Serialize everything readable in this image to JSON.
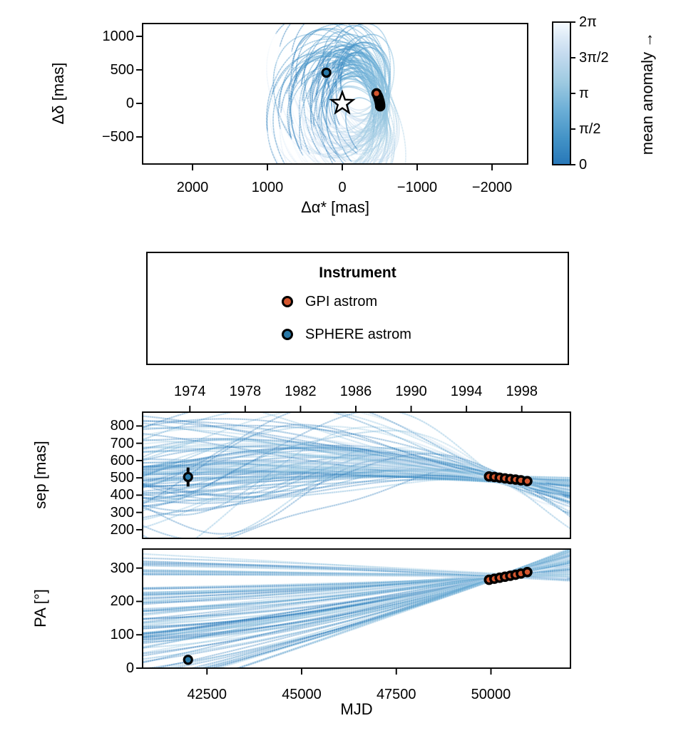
{
  "figure": {
    "background": "#ffffff"
  },
  "colors": {
    "gpi_marker": "#d4562e",
    "sphere_marker": "#2979a8",
    "marker_edge": "#000000",
    "axis": "#000000",
    "trace_blues": [
      "#2777b8",
      "#4292c6",
      "#6baed6",
      "#9ecae1",
      "#c6dbef",
      "#deebf7",
      "#f7fbff"
    ]
  },
  "legend": {
    "title": "Instrument",
    "items": [
      {
        "label": "GPI astrom",
        "color": "#d4562e"
      },
      {
        "label": "SPHERE astrom",
        "color": "#2979a8"
      }
    ]
  },
  "colorbar": {
    "label": "mean anomaly →",
    "ticks": [
      "0",
      "π/2",
      "π",
      "3π/2",
      "2π"
    ],
    "bottom_color": "#2777b8",
    "top_color": "#f7fbff"
  },
  "chart_data": [
    {
      "id": "sky_plane",
      "type": "line",
      "xlabel": "Δα* [mas]",
      "ylabel": "Δδ [mas]",
      "xlim": [
        2667,
        -2476
      ],
      "ylim": [
        -904,
        1191
      ],
      "xticks": {
        "values": [
          2000,
          1000,
          0,
          -1000,
          -2000
        ],
        "labels": [
          "2000",
          "1000",
          "0",
          "−1000",
          "−2000"
        ]
      },
      "yticks": {
        "values": [
          1000,
          500,
          0,
          -500
        ],
        "labels": [
          "1000",
          "500",
          "0",
          "−500"
        ]
      },
      "star": {
        "x": 0,
        "y": 0,
        "marker": "open-star"
      },
      "series": [
        {
          "name": "GPI astrom",
          "points": [
            [
              -506,
              -44
            ],
            [
              -505,
              -18
            ],
            [
              -501,
              9
            ],
            [
              -496,
              35
            ],
            [
              -489,
              60
            ],
            [
              -483,
              85
            ],
            [
              -473,
              113
            ],
            [
              -457,
              149
            ]
          ]
        },
        {
          "name": "SPHERE astrom",
          "points": [
            [
              213,
              458
            ]
          ]
        }
      ],
      "orbit_cloud": {
        "n_orbits": 85,
        "colored_by": "mean anomaly",
        "colormap": "Blues (dark=0, light=2π)"
      }
    },
    {
      "id": "separation_vs_time",
      "type": "line",
      "ylabel": "sep [mas]",
      "xlim": [
        40800,
        52100
      ],
      "ylim": [
        150,
        880
      ],
      "yticks": {
        "values": [
          800,
          700,
          600,
          500,
          400,
          300,
          200
        ],
        "labels": [
          "800",
          "700",
          "600",
          "500",
          "400",
          "300",
          "200"
        ]
      },
      "top_year_ticks": {
        "values": [
          42048,
          43509,
          44970,
          46431,
          47892,
          49353,
          50814
        ],
        "labels": [
          "1974",
          "1978",
          "1982",
          "1986",
          "1990",
          "1994",
          "1998"
        ]
      },
      "series": [
        {
          "name": "SPHERE astrom",
          "points": [
            [
              42000,
              505
            ]
          ],
          "yerr": [
            55
          ]
        },
        {
          "name": "GPI astrom",
          "points": [
            [
              49950,
              508
            ],
            [
              50090,
              505
            ],
            [
              50230,
              501
            ],
            [
              50370,
              497
            ],
            [
              50510,
              493
            ],
            [
              50650,
              490
            ],
            [
              50790,
              486
            ],
            [
              50960,
              481
            ]
          ]
        }
      ]
    },
    {
      "id": "pa_vs_time",
      "type": "line",
      "xlabel": "MJD",
      "ylabel": "PA [°]",
      "xlim": [
        40800,
        52100
      ],
      "ylim": [
        0,
        357
      ],
      "xticks": {
        "values": [
          42500,
          45000,
          47500,
          50000
        ],
        "labels": [
          "42500",
          "45000",
          "47500",
          "50000"
        ]
      },
      "yticks": {
        "values": [
          300,
          200,
          100,
          0
        ],
        "labels": [
          "300",
          "200",
          "100",
          "0"
        ]
      },
      "series": [
        {
          "name": "SPHERE astrom",
          "points": [
            [
              42000,
              25
            ]
          ]
        },
        {
          "name": "GPI astrom",
          "points": [
            [
              49950,
              265
            ],
            [
              50090,
              268
            ],
            [
              50230,
              271
            ],
            [
              50370,
              274
            ],
            [
              50510,
              277
            ],
            [
              50650,
              280
            ],
            [
              50790,
              283.5
            ],
            [
              50960,
              288
            ]
          ]
        }
      ]
    }
  ]
}
